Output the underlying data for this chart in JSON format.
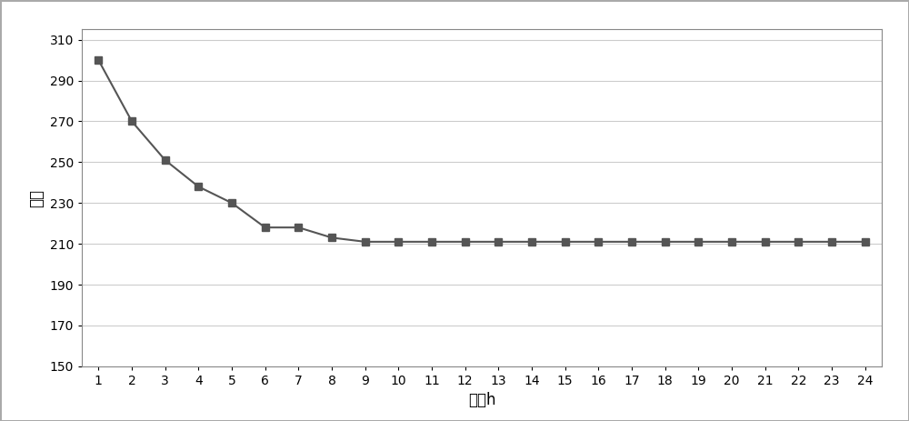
{
  "x": [
    1,
    2,
    3,
    4,
    5,
    6,
    7,
    8,
    9,
    10,
    11,
    12,
    13,
    14,
    15,
    16,
    17,
    18,
    19,
    20,
    21,
    22,
    23,
    24
  ],
  "y": [
    300,
    270,
    251,
    238,
    230,
    218,
    218,
    213,
    211,
    211,
    211,
    211,
    211,
    211,
    211,
    211,
    211,
    211,
    211,
    211,
    211,
    211,
    211,
    211
  ],
  "xlabel": "时间h",
  "ylabel": "应变",
  "ylim": [
    150,
    315
  ],
  "yticks": [
    150,
    170,
    190,
    210,
    230,
    250,
    270,
    290,
    310
  ],
  "xlim": [
    0.5,
    24.5
  ],
  "xticks": [
    1,
    2,
    3,
    4,
    5,
    6,
    7,
    8,
    9,
    10,
    11,
    12,
    13,
    14,
    15,
    16,
    17,
    18,
    19,
    20,
    21,
    22,
    23,
    24
  ],
  "line_color": "#555555",
  "marker": "s",
  "marker_size": 6,
  "line_width": 1.5,
  "background_color": "#ffffff",
  "grid_color": "#cccccc",
  "font_size_label": 12,
  "font_size_tick": 10,
  "outer_border_color": "#aaaaaa"
}
